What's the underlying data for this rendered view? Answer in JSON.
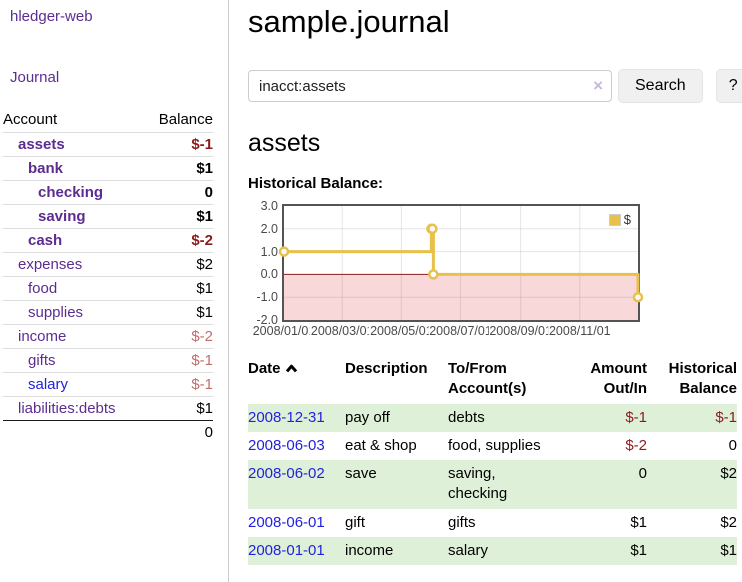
{
  "app": {
    "brand": "hledger-web",
    "nav_journal": "Journal"
  },
  "header": {
    "title": "sample.journal"
  },
  "search": {
    "value": "inacct:assets",
    "clear_icon": "×",
    "button": "Search",
    "help_button": "?"
  },
  "account_page": {
    "heading": "assets",
    "chart_label": "Historical Balance:"
  },
  "sidebar": {
    "table_headers": {
      "account": "Account",
      "balance": "Balance"
    },
    "accounts": [
      {
        "name": "assets",
        "depth": 1,
        "bold": true,
        "balance": "$-1",
        "balance_style": "neg",
        "link": "visited"
      },
      {
        "name": "bank",
        "depth": 2,
        "bold": true,
        "balance": "$1",
        "balance_style": "pos",
        "link": "visited"
      },
      {
        "name": "checking",
        "depth": 3,
        "bold": true,
        "balance": "0",
        "balance_style": "pos",
        "link": "visited"
      },
      {
        "name": "saving",
        "depth": 3,
        "bold": true,
        "balance": "$1",
        "balance_style": "pos",
        "link": "visited"
      },
      {
        "name": "cash",
        "depth": 2,
        "bold": true,
        "balance": "$-2",
        "balance_style": "neg",
        "link": "visited"
      },
      {
        "name": "expenses",
        "depth": 1,
        "bold": false,
        "balance": "$2",
        "balance_style": "pos",
        "link": "visited"
      },
      {
        "name": "food",
        "depth": 2,
        "bold": false,
        "balance": "$1",
        "balance_style": "pos",
        "link": "visited"
      },
      {
        "name": "supplies",
        "depth": 2,
        "bold": false,
        "balance": "$1",
        "balance_style": "pos",
        "link": "visited"
      },
      {
        "name": "income",
        "depth": 1,
        "bold": false,
        "balance": "$-2",
        "balance_style": "neg-light",
        "link": "visited"
      },
      {
        "name": "gifts",
        "depth": 2,
        "bold": false,
        "balance": "$-1",
        "balance_style": "neg-light",
        "link": "visited"
      },
      {
        "name": "salary",
        "depth": 2,
        "bold": false,
        "balance": "$-1",
        "balance_style": "neg-light",
        "link": "unvisited"
      },
      {
        "name": "liabilities:debts",
        "depth": 1,
        "bold": false,
        "balance": "$1",
        "balance_style": "pos",
        "link": "visited"
      }
    ],
    "total": "0"
  },
  "chart_data": {
    "type": "line",
    "step": "after",
    "title": "Historical Balance:",
    "x_min": "2008-01-01",
    "x_max": "2008-12-31",
    "ylim": [
      -2,
      3
    ],
    "grid": true,
    "legend_position": "top-right",
    "series": [
      {
        "name": "$",
        "color": "#e8c04a",
        "points": [
          [
            "2008-01-01",
            1
          ],
          [
            "2008-06-01",
            2
          ],
          [
            "2008-06-02",
            2
          ],
          [
            "2008-06-03",
            0
          ],
          [
            "2008-12-31",
            -1
          ]
        ]
      }
    ],
    "x_ticks": [
      {
        "date": "2008-01-01",
        "label": "2008/01/01"
      },
      {
        "date": "2008-03-01",
        "label": "2008/03/01"
      },
      {
        "date": "2008-05-01",
        "label": "2008/05/01"
      },
      {
        "date": "2008-07-01",
        "label": "2008/07/01"
      },
      {
        "date": "2008-09-01",
        "label": "2008/09/01"
      },
      {
        "date": "2008-11-01",
        "label": "2008/11/01"
      }
    ],
    "y_ticks": [
      {
        "v": 3,
        "label": "3.0"
      },
      {
        "v": 2,
        "label": "2.0"
      },
      {
        "v": 1,
        "label": "1.0"
      },
      {
        "v": 0,
        "label": "0.0"
      },
      {
        "v": -1,
        "label": "-1.0"
      },
      {
        "v": -2,
        "label": "-2.0"
      }
    ],
    "negative_fill": "#f8d8d8",
    "zero_line_color": "#8b1e1e"
  },
  "register": {
    "headers": {
      "date": {
        "line1": "Date"
      },
      "description": {
        "line1": "Description"
      },
      "tofrom": {
        "line1": "To/From",
        "line2": "Account(s)"
      },
      "amount": {
        "line1": "Amount",
        "line2": "Out/In"
      },
      "balance": {
        "line1": "Historical",
        "line2": "Balance"
      }
    },
    "rows": [
      {
        "date": "2008-12-31",
        "description": "pay off",
        "accounts": "debts",
        "amount": "$-1",
        "amount_style": "neg",
        "balance": "$-1",
        "balance_style": "neg"
      },
      {
        "date": "2008-06-03",
        "description": "eat & shop",
        "accounts": "food, supplies",
        "amount": "$-2",
        "amount_style": "neg",
        "balance": "0",
        "balance_style": "pos"
      },
      {
        "date": "2008-06-02",
        "description": "save",
        "accounts": "saving, checking",
        "amount": "0",
        "amount_style": "pos",
        "balance": "$2",
        "balance_style": "pos"
      },
      {
        "date": "2008-06-01",
        "description": "gift",
        "accounts": "gifts",
        "amount": "$1",
        "amount_style": "pos",
        "balance": "$2",
        "balance_style": "pos"
      },
      {
        "date": "2008-01-01",
        "description": "income",
        "accounts": "salary",
        "amount": "$1",
        "amount_style": "pos",
        "balance": "$1",
        "balance_style": "pos"
      }
    ]
  },
  "colors": {
    "link-purple": "#5c2d91",
    "link-blue": "#2222dd",
    "neg-red": "#8b1c1c",
    "neg-light": "#c36e6e",
    "row-green": "#dff0d8",
    "chart-gold": "#e8c04a",
    "chart-pink": "#f8d8d8",
    "zero-red": "#8b1e1e",
    "divider": "#cccccc",
    "button-bg": "#f0f0f0",
    "clear-x": "#c7b8d9"
  }
}
